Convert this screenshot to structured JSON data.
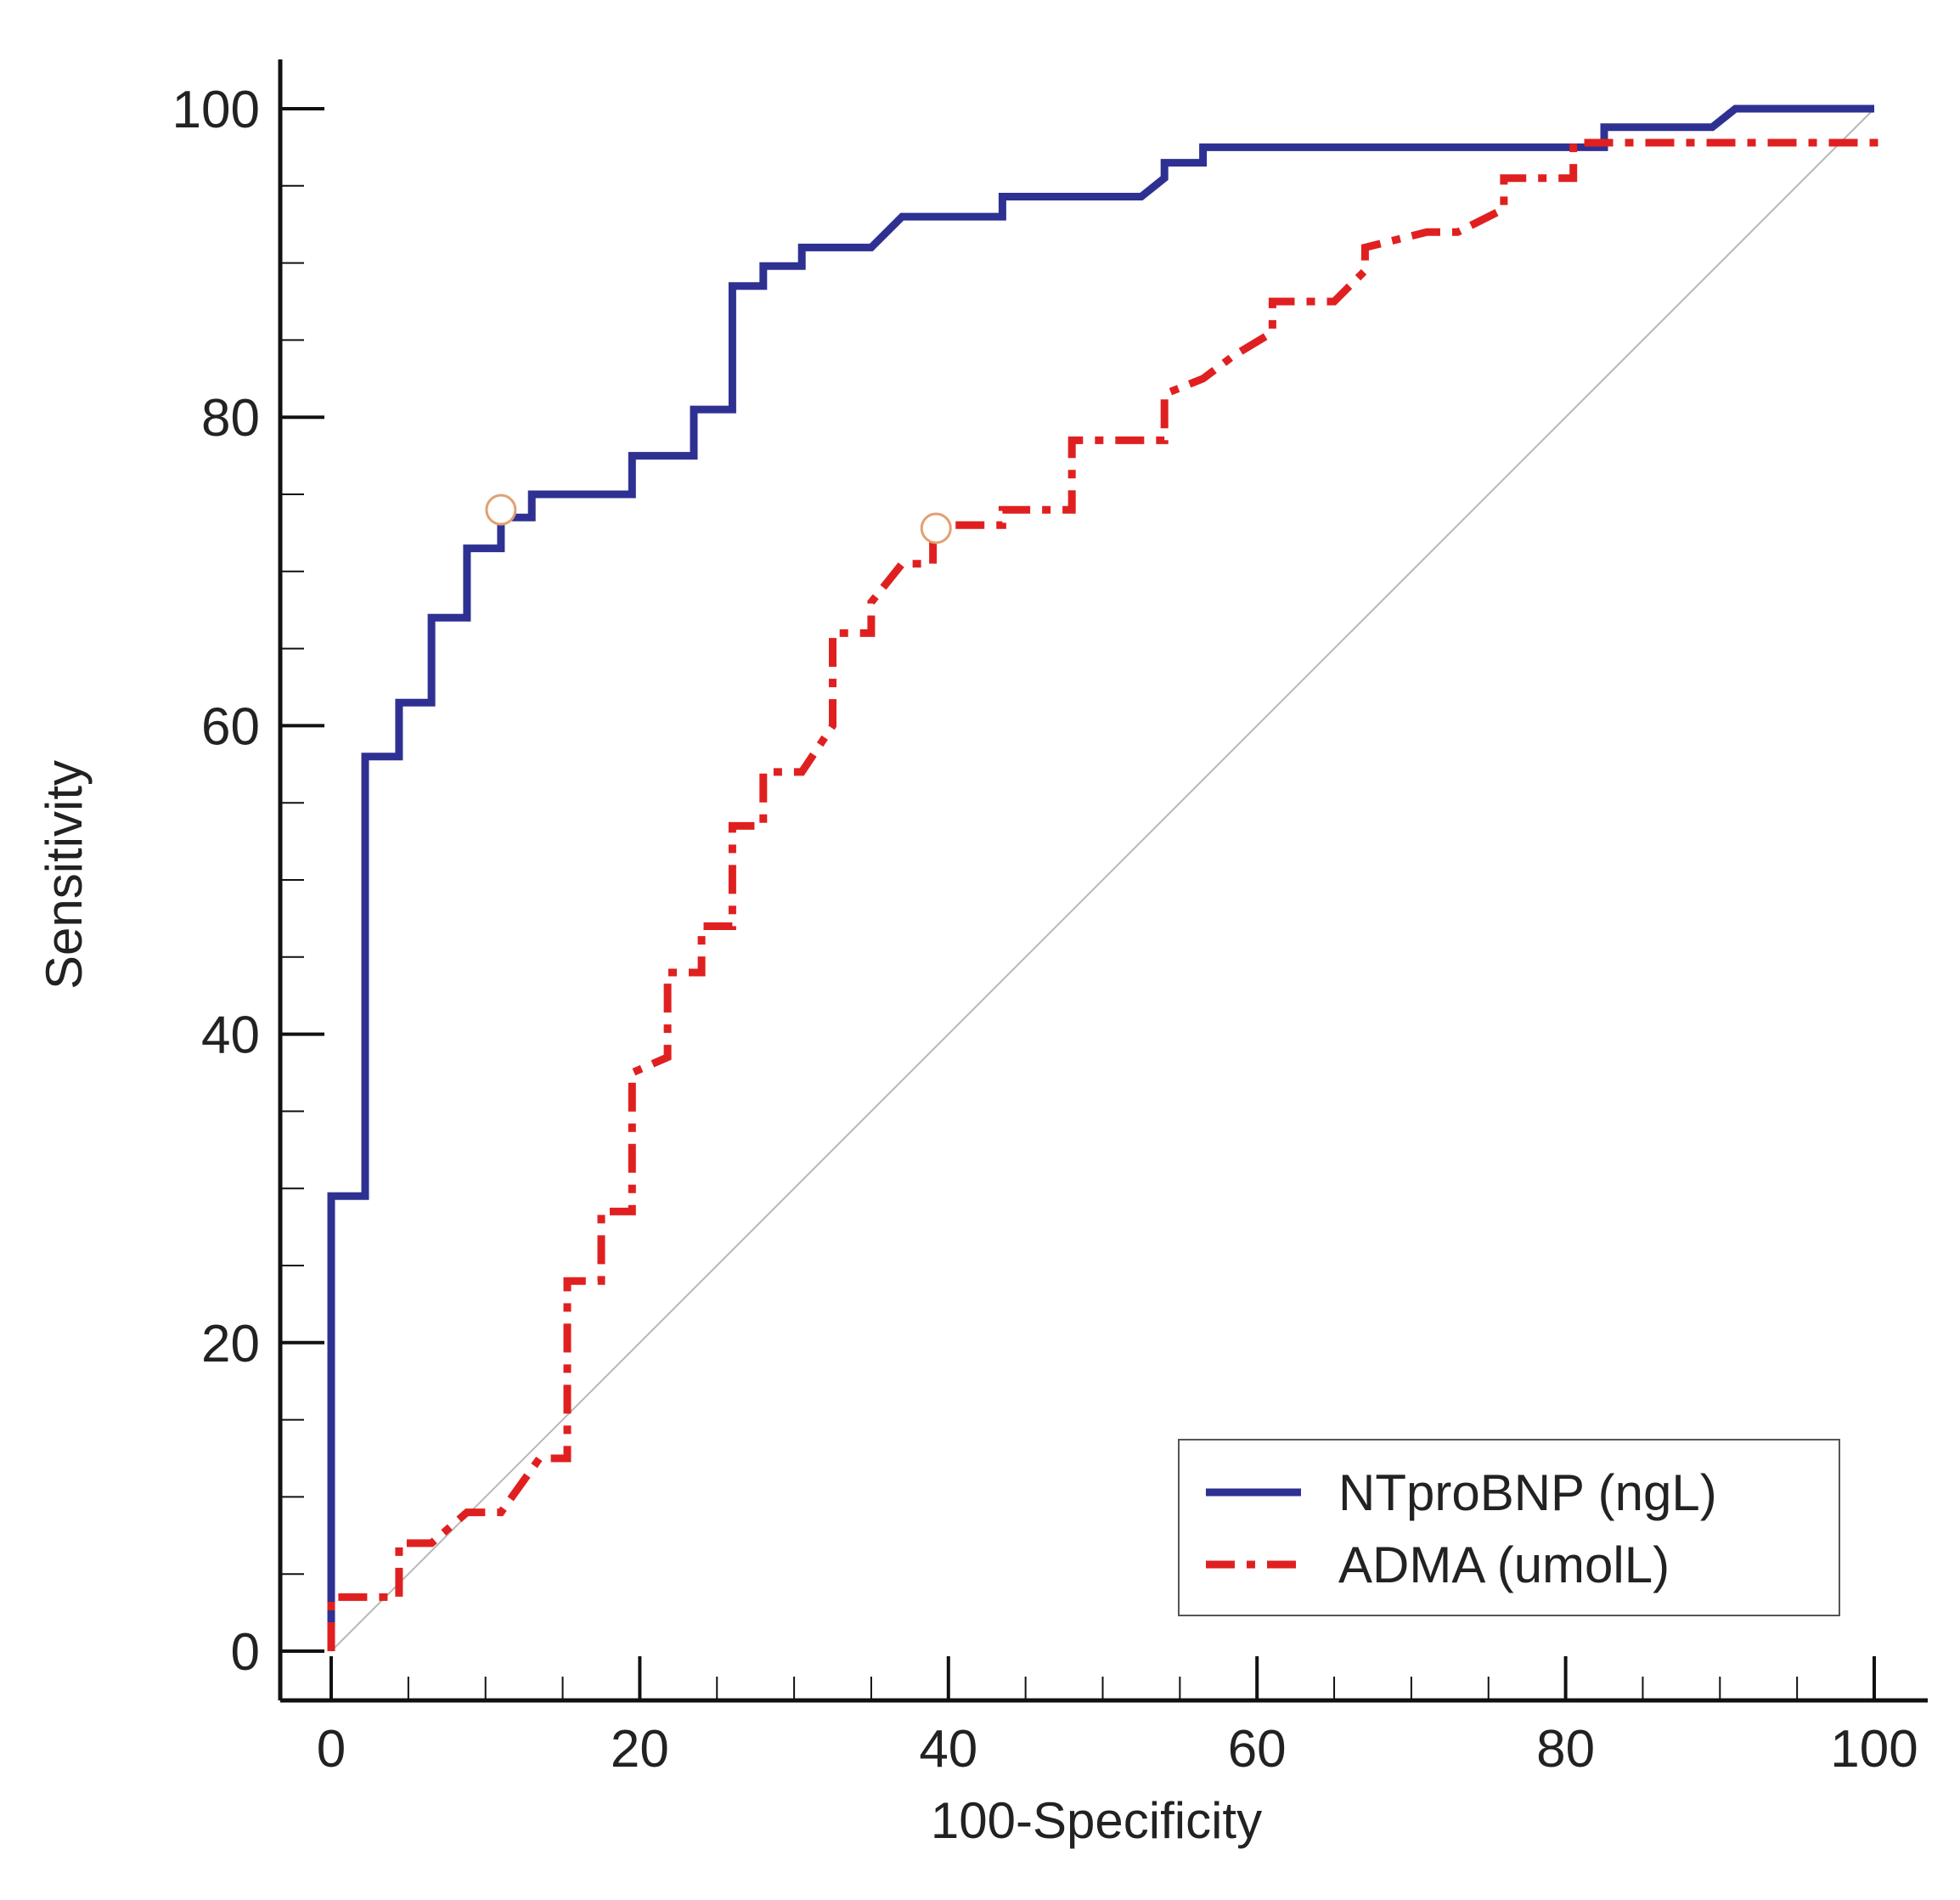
{
  "chart_data": {
    "type": "line",
    "title": "",
    "xlabel": "100-Specificity",
    "ylabel": "Sensitivity",
    "xlim": [
      0,
      100
    ],
    "ylim": [
      0,
      100
    ],
    "x_ticks": [
      0,
      20,
      40,
      60,
      80,
      100
    ],
    "y_ticks": [
      0,
      20,
      40,
      60,
      80,
      100
    ],
    "x_tick_labels": [
      "0",
      "20",
      "40",
      "60",
      "80",
      "100"
    ],
    "y_tick_labels": [
      "0",
      "20",
      "40",
      "60",
      "80",
      "100"
    ],
    "minor_tick_step": 5,
    "legend_position": "bottom-right",
    "reference_line": {
      "name": "chance",
      "color": "#b8b8b8",
      "points": [
        [
          0,
          0
        ],
        [
          100,
          100
        ]
      ]
    },
    "series": [
      {
        "name": "NTproBNP (ngL)",
        "color": "#2e3192",
        "style": "solid",
        "points": [
          [
            0,
            0
          ],
          [
            0,
            29.5
          ],
          [
            2.2,
            29.5
          ],
          [
            2.2,
            58
          ],
          [
            4.4,
            58
          ],
          [
            4.4,
            61.5
          ],
          [
            6.5,
            61.5
          ],
          [
            6.5,
            67
          ],
          [
            8.8,
            67
          ],
          [
            8.8,
            71.5
          ],
          [
            11,
            71.5
          ],
          [
            11,
            73.5
          ],
          [
            13,
            73.5
          ],
          [
            13,
            75
          ],
          [
            19.5,
            75
          ],
          [
            19.5,
            77.5
          ],
          [
            23.5,
            77.5
          ],
          [
            23.5,
            80.5
          ],
          [
            26,
            80.5
          ],
          [
            26,
            88.5
          ],
          [
            28,
            88.5
          ],
          [
            28,
            89.8
          ],
          [
            30.5,
            89.8
          ],
          [
            30.5,
            91
          ],
          [
            35,
            91
          ],
          [
            37,
            93
          ],
          [
            43.5,
            93
          ],
          [
            43.5,
            94.3
          ],
          [
            52.5,
            94.3
          ],
          [
            54,
            95.5
          ],
          [
            54,
            96.5
          ],
          [
            56.5,
            96.5
          ],
          [
            56.5,
            97.5
          ],
          [
            82.5,
            97.5
          ],
          [
            82.5,
            98.8
          ],
          [
            89.5,
            98.8
          ],
          [
            91,
            100
          ],
          [
            100,
            100
          ]
        ]
      },
      {
        "name": "ADMA (umolL)",
        "color": "#e02020",
        "style": "dashdot",
        "points": [
          [
            0,
            0
          ],
          [
            0,
            3.5
          ],
          [
            4.4,
            3.5
          ],
          [
            4.4,
            7
          ],
          [
            6.5,
            7
          ],
          [
            8.8,
            9
          ],
          [
            11,
            9
          ],
          [
            13.5,
            12.5
          ],
          [
            15.3,
            12.5
          ],
          [
            15.3,
            24
          ],
          [
            17.5,
            24
          ],
          [
            17.5,
            28.5
          ],
          [
            19.5,
            28.5
          ],
          [
            19.5,
            37.5
          ],
          [
            21.8,
            38.5
          ],
          [
            21.8,
            44
          ],
          [
            24,
            44
          ],
          [
            24,
            47
          ],
          [
            26,
            47
          ],
          [
            26,
            53.5
          ],
          [
            28,
            53.5
          ],
          [
            28,
            57
          ],
          [
            30.5,
            57
          ],
          [
            32.5,
            60
          ],
          [
            32.5,
            66
          ],
          [
            35,
            66
          ],
          [
            35,
            68
          ],
          [
            37,
            70.5
          ],
          [
            39,
            70.5
          ],
          [
            39,
            73
          ],
          [
            43.5,
            73
          ],
          [
            43.5,
            74
          ],
          [
            48,
            74
          ],
          [
            48,
            78.5
          ],
          [
            54,
            78.5
          ],
          [
            54,
            81.5
          ],
          [
            56.5,
            82.5
          ],
          [
            58.5,
            84
          ],
          [
            61,
            85.5
          ],
          [
            61,
            87.5
          ],
          [
            65,
            87.5
          ],
          [
            67,
            89.5
          ],
          [
            67,
            91
          ],
          [
            71,
            92
          ],
          [
            73,
            92
          ],
          [
            76,
            93.5
          ],
          [
            76,
            95.5
          ],
          [
            80.5,
            95.5
          ],
          [
            80.5,
            97.8
          ],
          [
            100,
            97.8
          ],
          [
            100,
            98.8
          ]
        ]
      }
    ],
    "cutoff_markers": [
      {
        "series": "NTproBNP (ngL)",
        "x": 11,
        "y": 74
      },
      {
        "series": "ADMA (umolL)",
        "x": 39.2,
        "y": 72.8
      }
    ]
  }
}
